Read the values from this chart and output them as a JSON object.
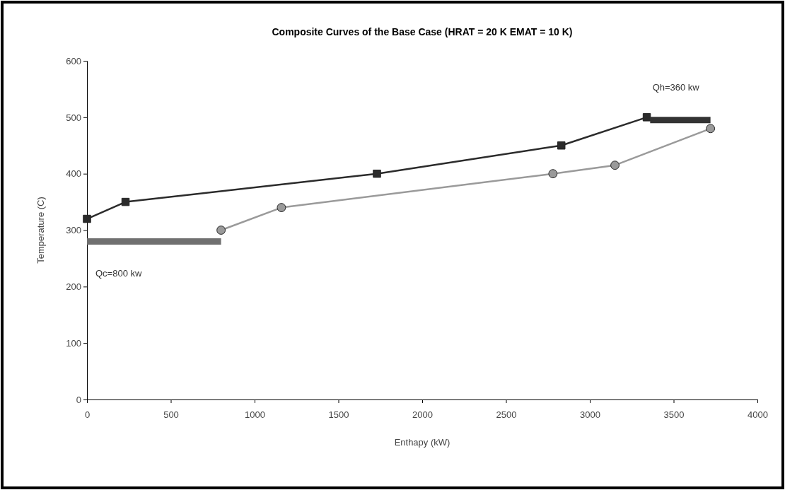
{
  "chart_data": {
    "type": "line",
    "title": "Composite Curves of the Base Case (HRAT = 20 K EMAT =  10 K)",
    "xlabel": "Enthapy (kW)",
    "ylabel": "Temperature (C)",
    "xlim": [
      0,
      4000
    ],
    "xticks": [
      0,
      500,
      1000,
      1500,
      2000,
      2500,
      3000,
      3500,
      4000
    ],
    "ylim": [
      0,
      600
    ],
    "yticks": [
      0,
      100,
      200,
      300,
      400,
      500,
      600
    ],
    "grid": false,
    "series": [
      {
        "color": "#2b2b2b",
        "marker": "square",
        "x": [
          0,
          230,
          1730,
          2830,
          3340
        ],
        "values": [
          320,
          350,
          400,
          450,
          500
        ]
      },
      {
        "color": "#9a9a9a",
        "marker": "circle",
        "x": [
          800,
          1160,
          2780,
          3150,
          3720
        ],
        "values": [
          300,
          340,
          400,
          415,
          480
        ]
      },
      {
        "type": "step",
        "color": "#707070",
        "x": [
          0,
          800
        ],
        "values": [
          280,
          280
        ]
      },
      {
        "type": "step",
        "color": "#333333",
        "x": [
          3360,
          3720
        ],
        "values": [
          495,
          495
        ]
      }
    ],
    "annotations": [
      "Qc=800 kw",
      "Qh=360 kw"
    ]
  }
}
